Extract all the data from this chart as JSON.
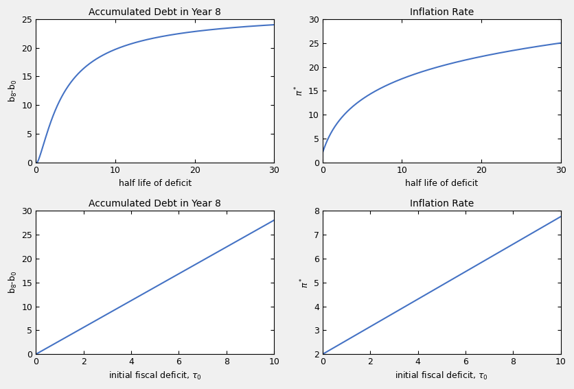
{
  "line_color": "#4472C4",
  "line_width": 1.5,
  "background_color": "#f0f0f0",
  "panel_bg": "#ffffff",
  "title_fontsize": 10,
  "label_fontsize": 9,
  "tick_fontsize": 9,
  "top_left": {
    "title": "Accumulated Debt in Year 8",
    "xlabel": "half life of deficit",
    "ylabel": "b$_8$-b$_0$",
    "xlim": [
      0,
      30
    ],
    "ylim": [
      0,
      25
    ],
    "yticks": [
      0,
      5,
      10,
      15,
      20,
      25
    ],
    "xticks": [
      0,
      10,
      20,
      30
    ]
  },
  "top_right": {
    "title": "Inflation Rate",
    "xlabel": "half life of deficit",
    "ylabel": "$\\pi^*$",
    "xlim": [
      0,
      30
    ],
    "ylim": [
      0,
      30
    ],
    "yticks": [
      0,
      5,
      10,
      15,
      20,
      25,
      30
    ],
    "xticks": [
      0,
      10,
      20,
      30
    ]
  },
  "bot_left": {
    "title": "Accumulated Debt in Year 8",
    "xlabel": "initial fiscal deficit, $\\tau_0$",
    "ylabel": "b$_8$-b$_0$",
    "xlim": [
      0,
      10
    ],
    "ylim": [
      0,
      30
    ],
    "yticks": [
      0,
      5,
      10,
      15,
      20,
      25,
      30
    ],
    "xticks": [
      0,
      2,
      4,
      6,
      8,
      10
    ]
  },
  "bot_right": {
    "title": "Inflation Rate",
    "xlabel": "initial fiscal deficit, $\\tau_0$",
    "ylabel": "$\\pi^*$",
    "xlim": [
      0,
      10
    ],
    "ylim": [
      2,
      8
    ],
    "yticks": [
      2,
      3,
      4,
      5,
      6,
      7,
      8
    ],
    "xticks": [
      0,
      2,
      4,
      6,
      8,
      10
    ]
  }
}
